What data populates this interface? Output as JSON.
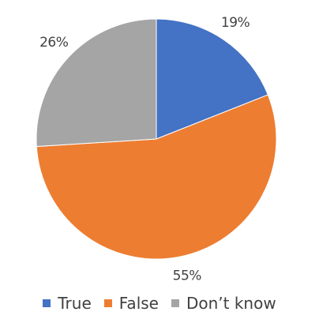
{
  "chart_data": {
    "type": "pie",
    "categories": [
      "True",
      "False",
      "Don’t know"
    ],
    "values": [
      19,
      55,
      26
    ],
    "value_labels": [
      "19%",
      "55%",
      "26%"
    ],
    "colors": [
      "#4472C4",
      "#ED7D31",
      "#A5A5A5"
    ],
    "legend_position": "bottom",
    "start_angle": "12 o'clock",
    "direction": "clockwise"
  },
  "legend": {
    "items": [
      {
        "label": "True",
        "color": "#4472C4"
      },
      {
        "label": "False",
        "color": "#ED7D31"
      },
      {
        "label": "Don’t know",
        "color": "#A5A5A5"
      }
    ]
  }
}
